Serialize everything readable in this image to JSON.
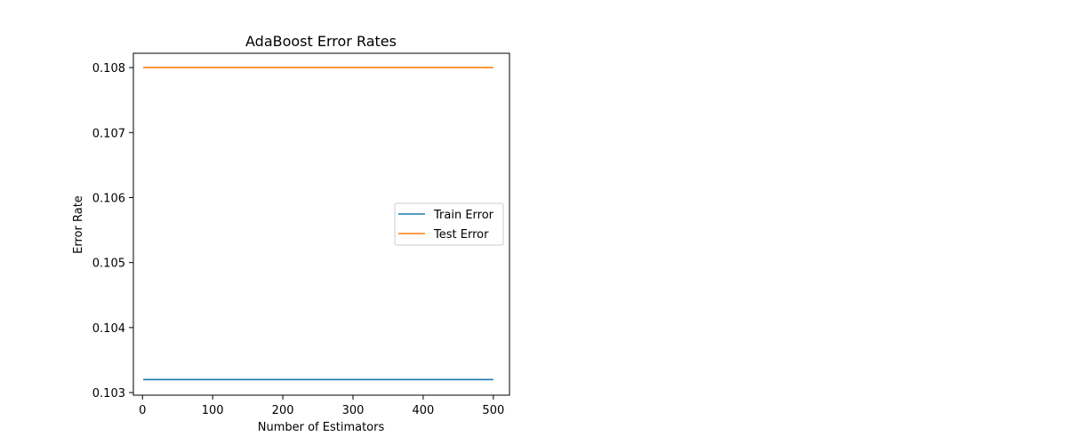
{
  "chart_data": {
    "type": "line",
    "title": "AdaBoost Error Rates",
    "xlabel": "Number of Estimators",
    "ylabel": "Error Rate",
    "xlim": [
      -13,
      523
    ],
    "ylim": [
      0.10296,
      0.10822
    ],
    "xticks": [
      0,
      100,
      200,
      300,
      400,
      500
    ],
    "xtick_labels": [
      "0",
      "100",
      "200",
      "300",
      "400",
      "500"
    ],
    "yticks": [
      0.103,
      0.104,
      0.105,
      0.106,
      0.107,
      0.108
    ],
    "ytick_labels": [
      "0.103",
      "0.104",
      "0.105",
      "0.106",
      "0.107",
      "0.108"
    ],
    "grid": false,
    "legend_position": "center-right",
    "series": [
      {
        "name": "Train Error",
        "color": "#1f77b4",
        "x": [
          1,
          500
        ],
        "values": [
          0.1032,
          0.1032
        ]
      },
      {
        "name": "Test Error",
        "color": "#ff7f0e",
        "x": [
          1,
          500
        ],
        "values": [
          0.108,
          0.108
        ]
      }
    ]
  }
}
